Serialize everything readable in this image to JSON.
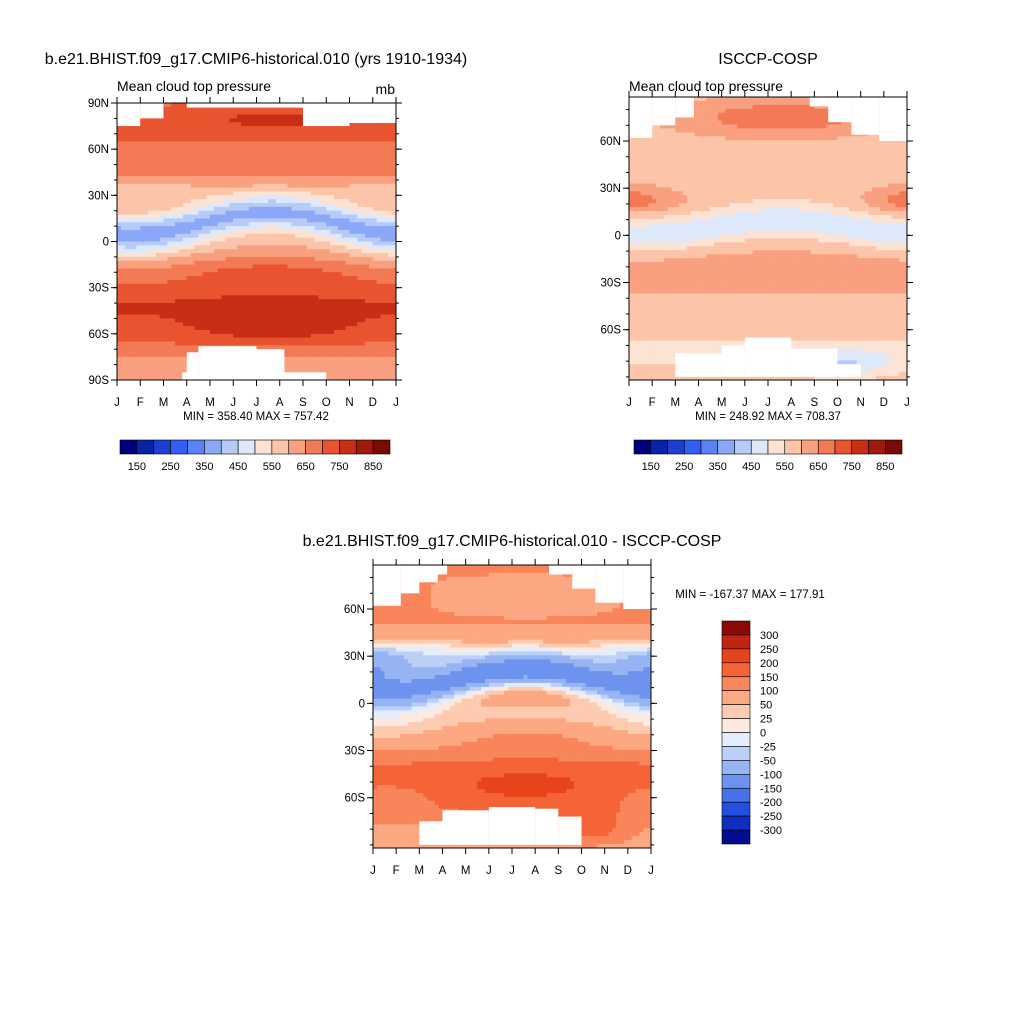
{
  "chart_data": [
    {
      "type": "heatmap",
      "title": "b.e21.BHIST.f09_g17.CMIP6-historical.010 (yrs 1910-1934)",
      "subtitle": "Mean cloud top pressure",
      "units": "mb",
      "x_ticks": [
        "J",
        "F",
        "M",
        "A",
        "M",
        "J",
        "J",
        "A",
        "S",
        "O",
        "N",
        "D",
        "J"
      ],
      "y_ticks": [
        "90N",
        "60N",
        "30N",
        "0",
        "30S",
        "60S",
        "90S"
      ],
      "stats": "MIN = 358.40 MAX = 757.42",
      "colorbar_labels": [
        "150",
        "250",
        "350",
        "450",
        "550",
        "650",
        "750",
        "850"
      ],
      "levels": [
        150,
        200,
        250,
        300,
        350,
        400,
        450,
        500,
        550,
        600,
        650,
        700,
        750,
        800,
        850
      ],
      "min": 358.4,
      "max": 757.42
    },
    {
      "type": "heatmap",
      "title": "ISCCP-COSP",
      "subtitle": "Mean cloud top pressure",
      "x_ticks": [
        "J",
        "F",
        "M",
        "A",
        "M",
        "J",
        "J",
        "A",
        "S",
        "O",
        "N",
        "D",
        "J"
      ],
      "y_ticks": [
        "60N",
        "30N",
        "0",
        "30S",
        "60S"
      ],
      "stats": "MIN = 248.92 MAX = 708.37",
      "colorbar_labels": [
        "150",
        "250",
        "350",
        "450",
        "550",
        "650",
        "750",
        "850"
      ],
      "levels": [
        150,
        200,
        250,
        300,
        350,
        400,
        450,
        500,
        550,
        600,
        650,
        700,
        750,
        800,
        850
      ],
      "min": 248.92,
      "max": 708.37
    },
    {
      "type": "heatmap",
      "title": "b.e21.BHIST.f09_g17.CMIP6-historical.010 - ISCCP-COSP",
      "x_ticks": [
        "J",
        "F",
        "M",
        "A",
        "M",
        "J",
        "J",
        "A",
        "S",
        "O",
        "N",
        "D",
        "J"
      ],
      "y_ticks": [
        "60N",
        "30N",
        "0",
        "30S",
        "60S"
      ],
      "stats": "MIN = -167.37 MAX = 177.91",
      "colorbar_labels": [
        "300",
        "250",
        "200",
        "150",
        "100",
        "50",
        "25",
        "0",
        "-25",
        "-50",
        "-100",
        "-150",
        "-200",
        "-250",
        "-300"
      ],
      "min": -167.37,
      "max": 177.91
    }
  ],
  "colors": {
    "abs_palette": [
      "#00007f",
      "#0a22a6",
      "#1a3fd1",
      "#2f5ef0",
      "#5a82f5",
      "#8aa8f7",
      "#b7cbf9",
      "#dde8fb",
      "#fde3d4",
      "#fcc4a8",
      "#f8a07f",
      "#f27a55",
      "#e8542f",
      "#c72e15",
      "#a0190a",
      "#7a0a04"
    ],
    "diff_palette": [
      "#8b0a05",
      "#c0260f",
      "#e8441c",
      "#f56436",
      "#f9855a",
      "#fba883",
      "#fdcbb0",
      "#fde9df",
      "#e3edfb",
      "#bcd0f7",
      "#96b3f3",
      "#6e93ef",
      "#4872eb",
      "#2450e0",
      "#0f2fc0",
      "#020c8e"
    ]
  }
}
